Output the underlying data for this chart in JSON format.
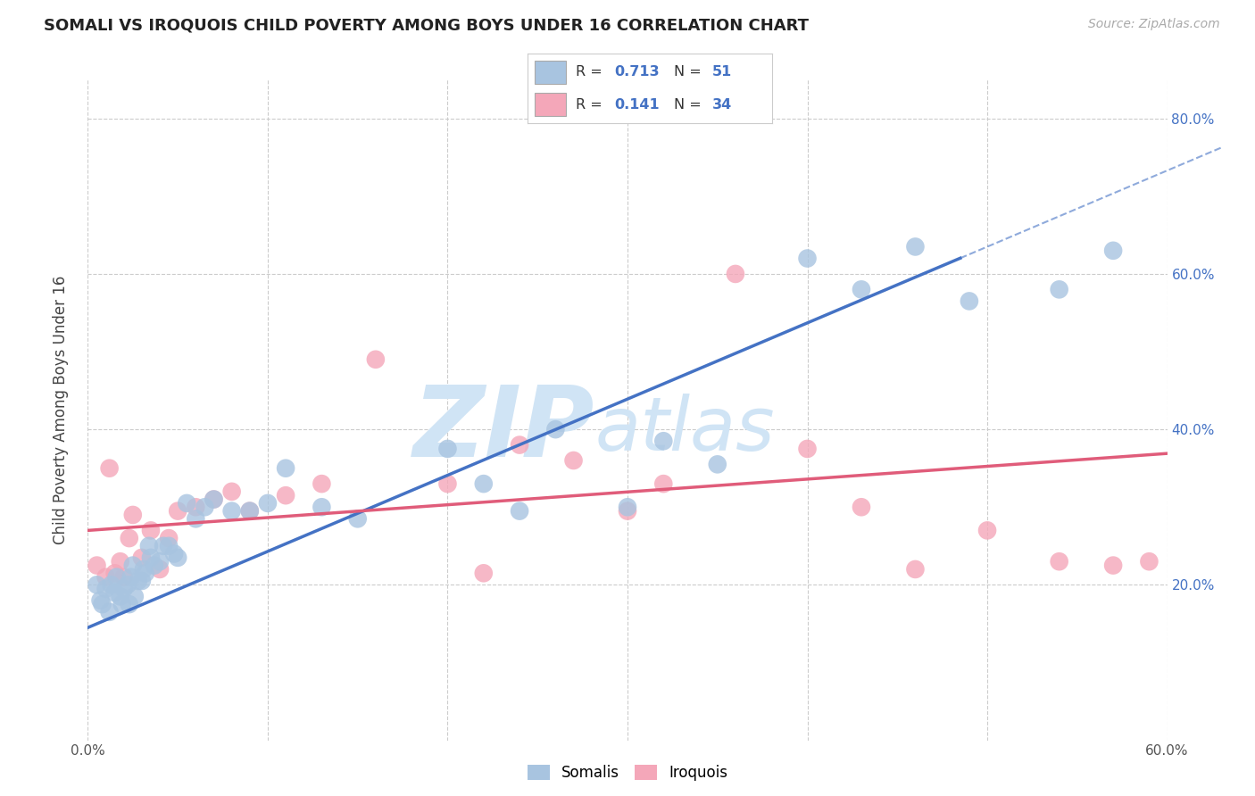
{
  "title": "SOMALI VS IROQUOIS CHILD POVERTY AMONG BOYS UNDER 16 CORRELATION CHART",
  "source": "Source: ZipAtlas.com",
  "ylabel": "Child Poverty Among Boys Under 16",
  "xmin": 0.0,
  "xmax": 0.6,
  "ymin": 0.0,
  "ymax": 0.85,
  "somali_R": 0.713,
  "somali_N": 51,
  "iroquois_R": 0.141,
  "iroquois_N": 34,
  "somali_color": "#a8c4e0",
  "iroquois_color": "#f4a7b9",
  "somali_line_color": "#4472c4",
  "iroquois_line_color": "#e05c7a",
  "value_color": "#4472c4",
  "background_color": "#ffffff",
  "watermark_color": "#d0e4f5",
  "somali_x": [
    0.005,
    0.007,
    0.008,
    0.01,
    0.012,
    0.013,
    0.015,
    0.016,
    0.018,
    0.019,
    0.02,
    0.022,
    0.023,
    0.024,
    0.025,
    0.026,
    0.028,
    0.03,
    0.031,
    0.032,
    0.034,
    0.035,
    0.037,
    0.04,
    0.042,
    0.045,
    0.048,
    0.05,
    0.055,
    0.06,
    0.065,
    0.07,
    0.08,
    0.09,
    0.1,
    0.11,
    0.13,
    0.15,
    0.2,
    0.22,
    0.24,
    0.26,
    0.3,
    0.32,
    0.35,
    0.4,
    0.43,
    0.46,
    0.49,
    0.54,
    0.57
  ],
  "somali_y": [
    0.2,
    0.18,
    0.175,
    0.195,
    0.165,
    0.2,
    0.19,
    0.21,
    0.185,
    0.175,
    0.195,
    0.2,
    0.175,
    0.21,
    0.225,
    0.185,
    0.205,
    0.205,
    0.22,
    0.215,
    0.25,
    0.235,
    0.225,
    0.23,
    0.25,
    0.25,
    0.24,
    0.235,
    0.305,
    0.285,
    0.3,
    0.31,
    0.295,
    0.295,
    0.305,
    0.35,
    0.3,
    0.285,
    0.375,
    0.33,
    0.295,
    0.4,
    0.3,
    0.385,
    0.355,
    0.62,
    0.58,
    0.635,
    0.565,
    0.58,
    0.63
  ],
  "iroquois_x": [
    0.005,
    0.01,
    0.012,
    0.015,
    0.018,
    0.02,
    0.023,
    0.025,
    0.03,
    0.035,
    0.04,
    0.045,
    0.05,
    0.06,
    0.07,
    0.08,
    0.09,
    0.11,
    0.13,
    0.16,
    0.2,
    0.22,
    0.24,
    0.27,
    0.3,
    0.32,
    0.36,
    0.4,
    0.43,
    0.46,
    0.5,
    0.54,
    0.57,
    0.59
  ],
  "iroquois_y": [
    0.225,
    0.21,
    0.35,
    0.215,
    0.23,
    0.21,
    0.26,
    0.29,
    0.235,
    0.27,
    0.22,
    0.26,
    0.295,
    0.3,
    0.31,
    0.32,
    0.295,
    0.315,
    0.33,
    0.49,
    0.33,
    0.215,
    0.38,
    0.36,
    0.295,
    0.33,
    0.6,
    0.375,
    0.3,
    0.22,
    0.27,
    0.23,
    0.225,
    0.23
  ]
}
